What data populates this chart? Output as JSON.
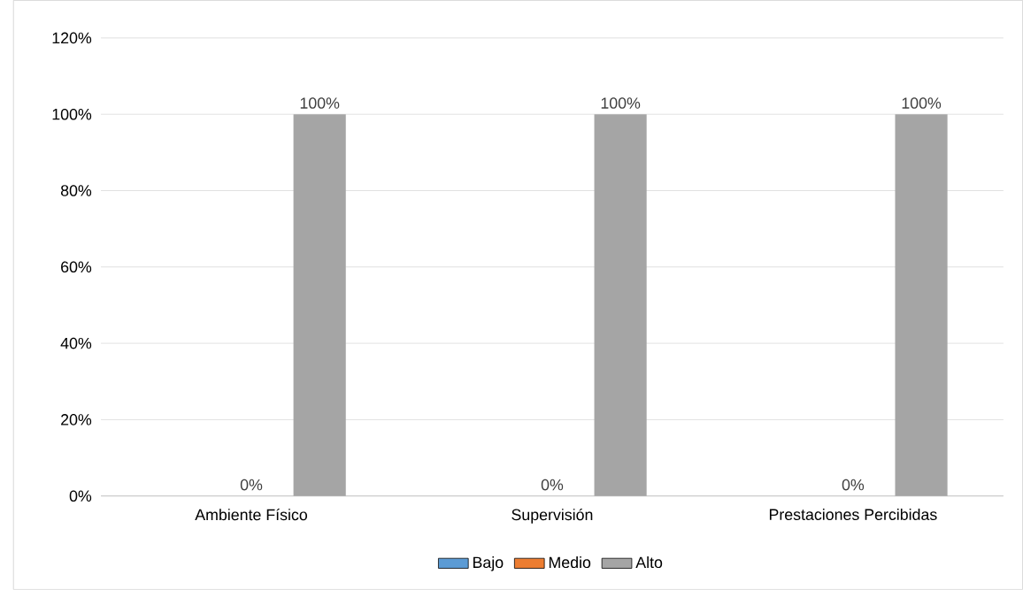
{
  "chart_data": {
    "type": "bar",
    "categories": [
      "Ambiente Físico",
      "Supervisión",
      "Prestaciones Percibidas"
    ],
    "series": [
      {
        "name": "Bajo",
        "color": "#5b9bd5",
        "values": [
          null,
          null,
          null
        ]
      },
      {
        "name": "Medio",
        "color": "#ed7d31",
        "values": [
          0,
          0,
          0
        ],
        "value_labels": [
          "0%",
          "0%",
          "0%"
        ]
      },
      {
        "name": "Alto",
        "color": "#a5a5a5",
        "values": [
          100,
          100,
          100
        ],
        "value_labels": [
          "100%",
          "100%",
          "100%"
        ]
      }
    ],
    "ylim": [
      0,
      120
    ],
    "yticks": [
      {
        "value": 0,
        "label": "0%"
      },
      {
        "value": 20,
        "label": "20%"
      },
      {
        "value": 40,
        "label": "40%"
      },
      {
        "value": 60,
        "label": "60%"
      },
      {
        "value": 80,
        "label": "80%"
      },
      {
        "value": 100,
        "label": "100%"
      },
      {
        "value": 120,
        "label": "120%"
      }
    ],
    "grid": "y",
    "legend": "bottom"
  }
}
